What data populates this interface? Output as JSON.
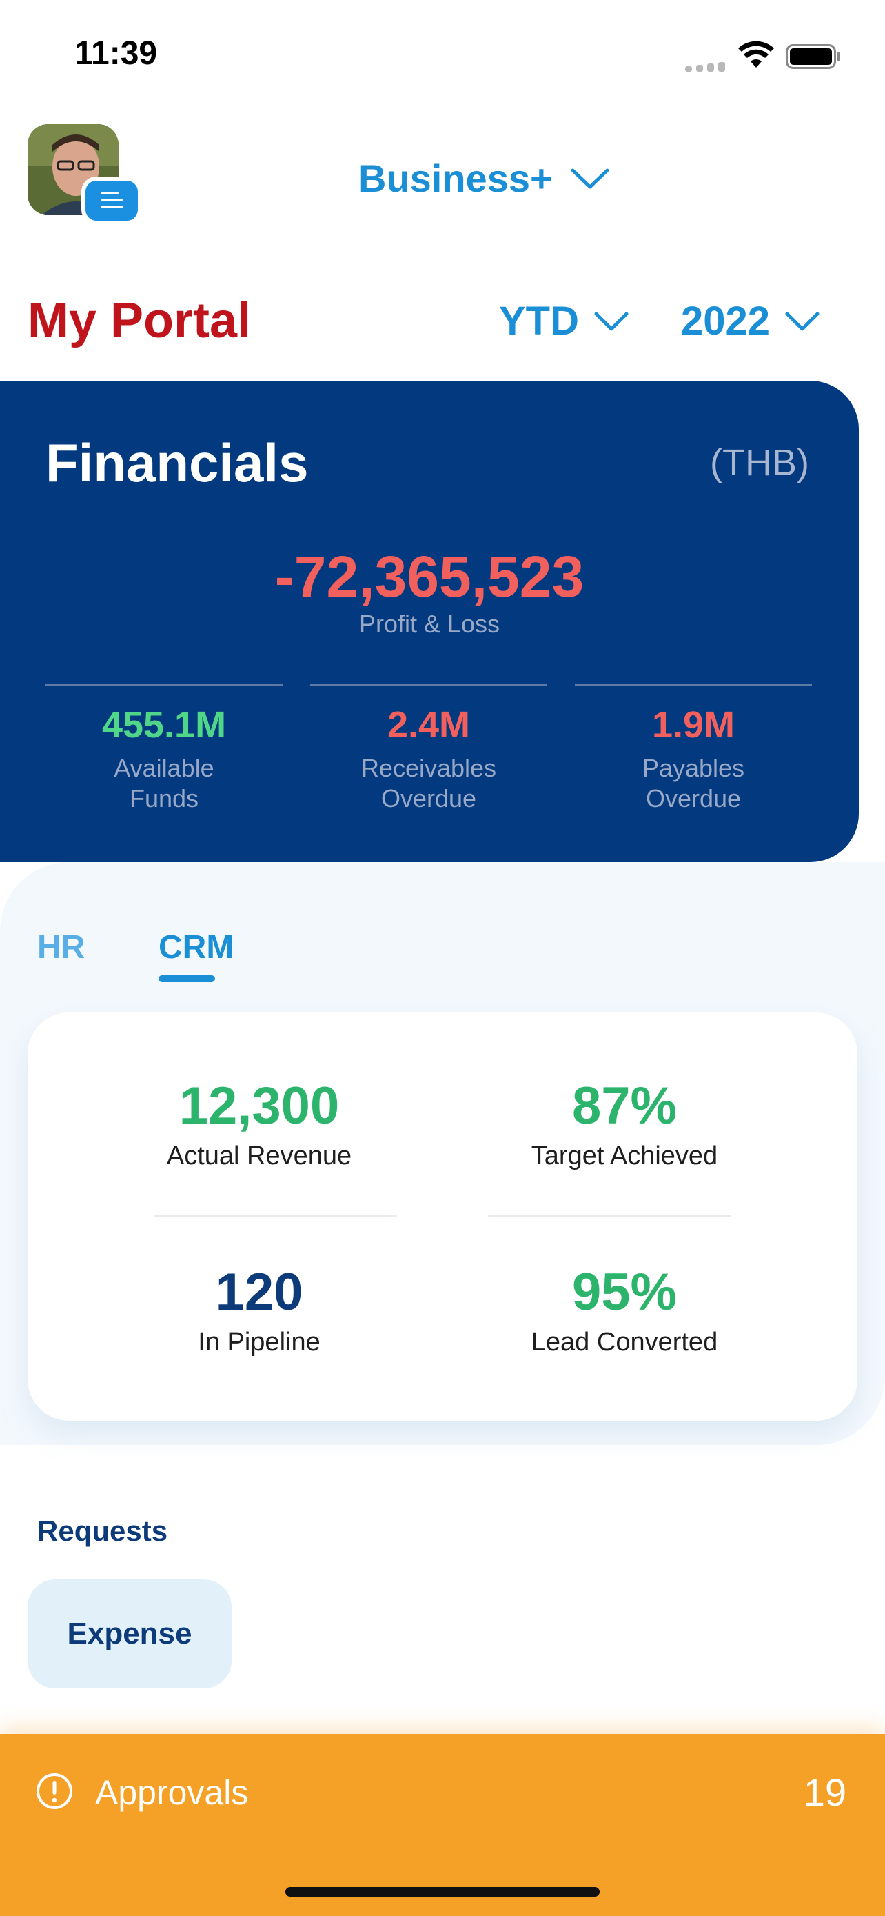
{
  "status_bar": {
    "time": "11:39"
  },
  "header": {
    "business_label": "Business+",
    "portal_title": "My Portal",
    "period": "YTD",
    "year": "2022"
  },
  "financials": {
    "title": "Financials",
    "currency": "(THB)",
    "profit_loss_value": "-72,365,523",
    "profit_loss_label": "Profit & Loss",
    "kpis": [
      {
        "value": "455.1M",
        "label_line1": "Available",
        "label_line2": "Funds",
        "color": "#4fd689"
      },
      {
        "value": "2.4M",
        "label_line1": "Receivables",
        "label_line2": "Overdue",
        "color": "#f2605e"
      },
      {
        "value": "1.9M",
        "label_line1": "Payables",
        "label_line2": "Overdue",
        "color": "#f2605e"
      }
    ]
  },
  "tabs": [
    {
      "label": "HR",
      "active": false
    },
    {
      "label": "CRM",
      "active": true
    }
  ],
  "crm": {
    "metrics": [
      {
        "value": "12,300",
        "label": "Actual Revenue",
        "color": "#2db46c"
      },
      {
        "value": "87%",
        "label": "Target Achieved",
        "color": "#2db46c"
      },
      {
        "value": "120",
        "label": "In Pipeline",
        "color": "#0d3b7a"
      },
      {
        "value": "95%",
        "label": "Lead Converted",
        "color": "#2db46c"
      }
    ]
  },
  "requests": {
    "title": "Requests",
    "items": [
      {
        "label": "Expense"
      }
    ]
  },
  "approvals": {
    "label": "Approvals",
    "count": "19",
    "icon": "alert-circle-icon"
  }
}
